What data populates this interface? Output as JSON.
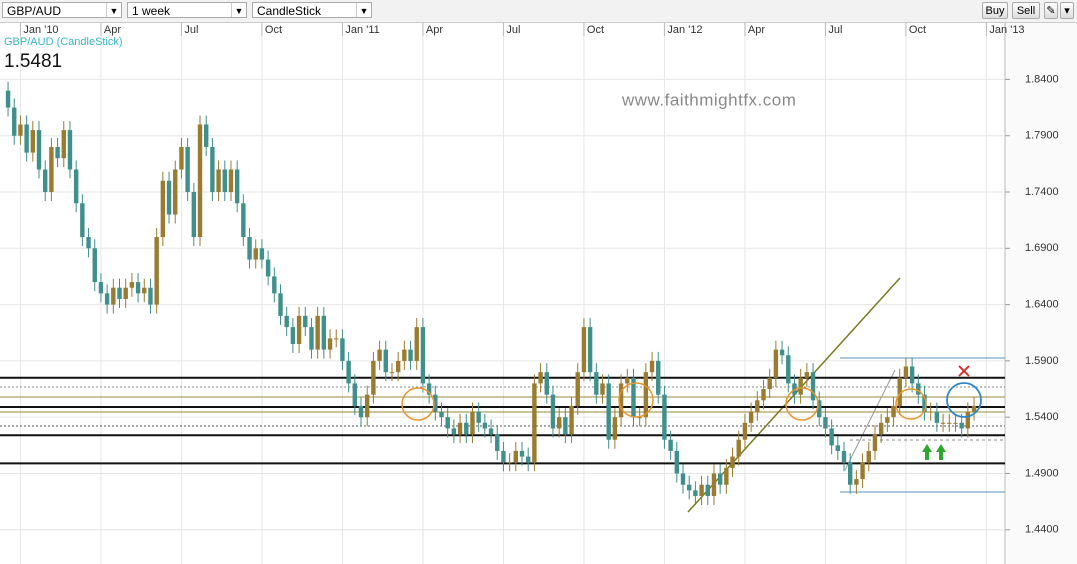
{
  "toolbar": {
    "symbol": "GBP/AUD",
    "interval": "1 week",
    "style": "CandleStick",
    "buttons": [
      "Buy",
      "Sell"
    ]
  },
  "chart_data": {
    "type": "candlestick",
    "title": "GBP/AUD (CandleStick)",
    "last_price": "1.5481",
    "watermark": "www.faithmightfx.com",
    "up_color": "#9a7b2f",
    "down_color": "#3f8f8c",
    "xlim": [
      -1.3,
      161
    ],
    "xticks": [
      {
        "value": 2,
        "label": "Jan '10"
      },
      {
        "value": 15,
        "label": "Apr"
      },
      {
        "value": 28,
        "label": "Jul"
      },
      {
        "value": 41,
        "label": "Oct"
      },
      {
        "value": 54,
        "label": "Jan '11"
      },
      {
        "value": 67,
        "label": "Apr"
      },
      {
        "value": 80,
        "label": "Jul"
      },
      {
        "value": 93,
        "label": "Oct"
      },
      {
        "value": 106,
        "label": "Jan '12"
      },
      {
        "value": 119,
        "label": "Apr"
      },
      {
        "value": 132,
        "label": "Jul"
      },
      {
        "value": 145,
        "label": "Oct"
      },
      {
        "value": 158,
        "label": "Jan '13"
      }
    ],
    "ylim": [
      1.4096,
      1.891
    ],
    "yticks": [
      {
        "value": 1.44,
        "label": "1.4400"
      },
      {
        "value": 1.49,
        "label": "1.4900"
      },
      {
        "value": 1.54,
        "label": "1.5400"
      },
      {
        "value": 1.59,
        "label": "1.5900"
      },
      {
        "value": 1.64,
        "label": "1.6400"
      },
      {
        "value": 1.69,
        "label": "1.6900"
      },
      {
        "value": 1.74,
        "label": "1.7400"
      },
      {
        "value": 1.79,
        "label": "1.7900"
      },
      {
        "value": 1.84,
        "label": "1.8400"
      }
    ],
    "levels": [
      1.575,
      1.549,
      1.524,
      1.499
    ],
    "open": [
      1.83,
      1.815,
      1.79,
      1.8,
      1.775,
      1.795,
      1.76,
      1.74,
      1.78,
      1.77,
      1.795,
      1.76,
      1.73,
      1.7,
      1.69,
      1.66,
      1.65,
      1.64,
      1.655,
      1.645,
      1.655,
      1.66,
      1.65,
      1.655,
      1.64,
      1.7,
      1.75,
      1.72,
      1.76,
      1.78,
      1.74,
      1.7,
      1.8,
      1.78,
      1.74,
      1.76,
      1.74,
      1.76,
      1.73,
      1.7,
      1.68,
      1.69,
      1.68,
      1.665,
      1.65,
      1.63,
      1.62,
      1.605,
      1.63,
      1.62,
      1.6,
      1.63,
      1.6,
      1.61,
      1.61,
      1.59,
      1.57,
      1.55,
      1.54,
      1.56,
      1.59,
      1.6,
      1.58,
      1.58,
      1.59,
      1.6,
      1.59,
      1.62,
      1.57,
      1.56,
      1.545,
      1.54,
      1.53,
      1.525,
      1.535,
      1.525,
      1.545,
      1.535,
      1.53,
      1.525,
      1.51,
      1.5,
      1.5,
      1.51,
      1.505,
      1.5,
      1.57,
      1.58,
      1.56,
      1.53,
      1.54,
      1.525,
      1.55,
      1.58,
      1.62,
      1.58,
      1.56,
      1.57,
      1.52,
      1.54,
      1.57,
      1.575,
      1.54,
      1.54,
      1.58,
      1.59,
      1.56,
      1.52,
      1.51,
      1.49,
      1.48,
      1.475,
      1.47,
      1.48,
      1.47,
      1.49,
      1.48,
      1.495,
      1.505,
      1.52,
      1.535,
      1.545,
      1.555,
      1.565,
      1.575,
      1.6,
      1.595,
      1.57,
      1.56,
      1.575,
      1.58,
      1.555,
      1.54,
      1.53,
      1.515,
      1.51,
      1.5,
      1.48,
      1.485,
      1.5,
      1.51,
      1.525,
      1.535,
      1.54,
      1.55,
      1.575,
      1.585,
      1.57,
      1.56,
      1.545,
      1.545,
      1.535,
      1.535,
      1.535,
      1.535,
      1.53,
      1.545
    ],
    "high": [
      1.838,
      1.823,
      1.808,
      1.808,
      1.803,
      1.803,
      1.768,
      1.788,
      1.788,
      1.803,
      1.803,
      1.768,
      1.738,
      1.708,
      1.698,
      1.668,
      1.658,
      1.663,
      1.663,
      1.663,
      1.668,
      1.668,
      1.663,
      1.663,
      1.708,
      1.758,
      1.758,
      1.768,
      1.788,
      1.788,
      1.748,
      1.808,
      1.808,
      1.788,
      1.768,
      1.768,
      1.768,
      1.768,
      1.738,
      1.708,
      1.698,
      1.698,
      1.688,
      1.673,
      1.658,
      1.638,
      1.628,
      1.638,
      1.638,
      1.628,
      1.638,
      1.638,
      1.618,
      1.618,
      1.618,
      1.598,
      1.578,
      1.558,
      1.568,
      1.598,
      1.608,
      1.608,
      1.588,
      1.598,
      1.608,
      1.608,
      1.628,
      1.628,
      1.578,
      1.568,
      1.553,
      1.548,
      1.538,
      1.543,
      1.543,
      1.553,
      1.553,
      1.543,
      1.538,
      1.533,
      1.518,
      1.508,
      1.518,
      1.518,
      1.513,
      1.578,
      1.588,
      1.588,
      1.568,
      1.548,
      1.548,
      1.558,
      1.588,
      1.628,
      1.628,
      1.588,
      1.578,
      1.578,
      1.548,
      1.578,
      1.583,
      1.583,
      1.548,
      1.588,
      1.598,
      1.598,
      1.568,
      1.528,
      1.518,
      1.498,
      1.488,
      1.483,
      1.488,
      1.488,
      1.498,
      1.498,
      1.503,
      1.513,
      1.528,
      1.543,
      1.553,
      1.563,
      1.573,
      1.583,
      1.608,
      1.608,
      1.603,
      1.578,
      1.583,
      1.588,
      1.588,
      1.563,
      1.548,
      1.538,
      1.523,
      1.518,
      1.508,
      1.493,
      1.508,
      1.518,
      1.533,
      1.543,
      1.548,
      1.558,
      1.583,
      1.593,
      1.593,
      1.578,
      1.568,
      1.553,
      1.553,
      1.543,
      1.543,
      1.543,
      1.543,
      1.553,
      1.558
    ],
    "low": [
      1.807,
      1.782,
      1.782,
      1.767,
      1.767,
      1.752,
      1.732,
      1.732,
      1.762,
      1.762,
      1.752,
      1.722,
      1.692,
      1.682,
      1.652,
      1.642,
      1.632,
      1.632,
      1.637,
      1.637,
      1.647,
      1.642,
      1.642,
      1.632,
      1.632,
      1.692,
      1.712,
      1.712,
      1.752,
      1.732,
      1.692,
      1.692,
      1.772,
      1.732,
      1.732,
      1.732,
      1.732,
      1.722,
      1.692,
      1.672,
      1.672,
      1.672,
      1.657,
      1.642,
      1.622,
      1.612,
      1.597,
      1.597,
      1.612,
      1.592,
      1.592,
      1.592,
      1.592,
      1.602,
      1.582,
      1.562,
      1.542,
      1.532,
      1.532,
      1.552,
      1.582,
      1.572,
      1.572,
      1.572,
      1.582,
      1.582,
      1.582,
      1.562,
      1.552,
      1.537,
      1.532,
      1.522,
      1.517,
      1.517,
      1.517,
      1.517,
      1.527,
      1.522,
      1.517,
      1.502,
      1.492,
      1.492,
      1.492,
      1.497,
      1.492,
      1.492,
      1.562,
      1.552,
      1.522,
      1.522,
      1.517,
      1.517,
      1.542,
      1.572,
      1.572,
      1.552,
      1.552,
      1.512,
      1.512,
      1.532,
      1.562,
      1.532,
      1.532,
      1.532,
      1.572,
      1.552,
      1.512,
      1.502,
      1.482,
      1.472,
      1.467,
      1.462,
      1.462,
      1.462,
      1.462,
      1.472,
      1.472,
      1.487,
      1.497,
      1.512,
      1.527,
      1.537,
      1.547,
      1.557,
      1.567,
      1.587,
      1.562,
      1.552,
      1.552,
      1.567,
      1.547,
      1.532,
      1.522,
      1.507,
      1.502,
      1.492,
      1.472,
      1.472,
      1.477,
      1.492,
      1.502,
      1.517,
      1.527,
      1.532,
      1.542,
      1.567,
      1.562,
      1.552,
      1.537,
      1.537,
      1.527,
      1.527,
      1.527,
      1.527,
      1.522,
      1.522,
      1.537
    ],
    "close": [
      1.815,
      1.79,
      1.8,
      1.775,
      1.795,
      1.76,
      1.74,
      1.78,
      1.77,
      1.795,
      1.76,
      1.73,
      1.7,
      1.69,
      1.66,
      1.65,
      1.64,
      1.655,
      1.645,
      1.655,
      1.66,
      1.65,
      1.655,
      1.64,
      1.7,
      1.75,
      1.72,
      1.76,
      1.78,
      1.74,
      1.7,
      1.8,
      1.78,
      1.74,
      1.76,
      1.74,
      1.76,
      1.73,
      1.7,
      1.68,
      1.69,
      1.68,
      1.665,
      1.65,
      1.63,
      1.62,
      1.605,
      1.63,
      1.62,
      1.6,
      1.63,
      1.6,
      1.61,
      1.61,
      1.59,
      1.57,
      1.55,
      1.54,
      1.56,
      1.59,
      1.6,
      1.58,
      1.58,
      1.59,
      1.6,
      1.59,
      1.62,
      1.57,
      1.56,
      1.545,
      1.54,
      1.53,
      1.525,
      1.535,
      1.525,
      1.545,
      1.535,
      1.53,
      1.525,
      1.51,
      1.5,
      1.5,
      1.51,
      1.505,
      1.5,
      1.57,
      1.58,
      1.56,
      1.53,
      1.54,
      1.525,
      1.55,
      1.58,
      1.62,
      1.58,
      1.56,
      1.57,
      1.52,
      1.54,
      1.57,
      1.575,
      1.54,
      1.54,
      1.58,
      1.59,
      1.56,
      1.52,
      1.51,
      1.49,
      1.48,
      1.475,
      1.47,
      1.48,
      1.47,
      1.49,
      1.48,
      1.495,
      1.505,
      1.52,
      1.535,
      1.545,
      1.555,
      1.565,
      1.575,
      1.6,
      1.595,
      1.57,
      1.56,
      1.575,
      1.58,
      1.555,
      1.54,
      1.53,
      1.515,
      1.51,
      1.5,
      1.48,
      1.485,
      1.5,
      1.51,
      1.525,
      1.535,
      1.54,
      1.55,
      1.575,
      1.585,
      1.57,
      1.56,
      1.545,
      1.545,
      1.535,
      1.535,
      1.535,
      1.535,
      1.53,
      1.545,
      1.55
    ]
  }
}
